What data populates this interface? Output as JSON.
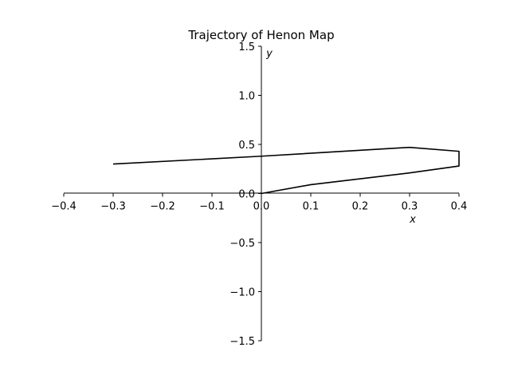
{
  "chart_data": {
    "type": "line",
    "title": "Trajectory of Henon Map",
    "xlabel": "x",
    "ylabel": "y",
    "xlim": [
      -0.4,
      0.4
    ],
    "ylim": [
      -1.5,
      1.5
    ],
    "xticks": [
      -0.4,
      -0.3,
      -0.2,
      -0.1,
      0.0,
      0.1,
      0.2,
      0.3,
      0.4
    ],
    "xtick_labels": [
      "−0.4",
      "−0.3",
      "−0.2",
      "−0.1",
      "0.0",
      "0.1",
      "0.2",
      "0.3",
      "0.4"
    ],
    "yticks": [
      -1.5,
      -1.0,
      -0.5,
      0.0,
      0.5,
      1.0,
      1.5
    ],
    "ytick_labels": [
      "−1.5",
      "−1.0",
      "−0.5",
      "0.0",
      "0.5",
      "1.0",
      "1.5"
    ],
    "grid": false,
    "spines": "centered",
    "line_color": "#000000",
    "series": [
      {
        "x": [
          0.0,
          0.1,
          0.3,
          0.4,
          0.4,
          0.3,
          0.0,
          -0.3
        ],
        "y": [
          0.0,
          0.09,
          0.21,
          0.28,
          0.43,
          0.47,
          0.38,
          0.3
        ]
      }
    ]
  }
}
